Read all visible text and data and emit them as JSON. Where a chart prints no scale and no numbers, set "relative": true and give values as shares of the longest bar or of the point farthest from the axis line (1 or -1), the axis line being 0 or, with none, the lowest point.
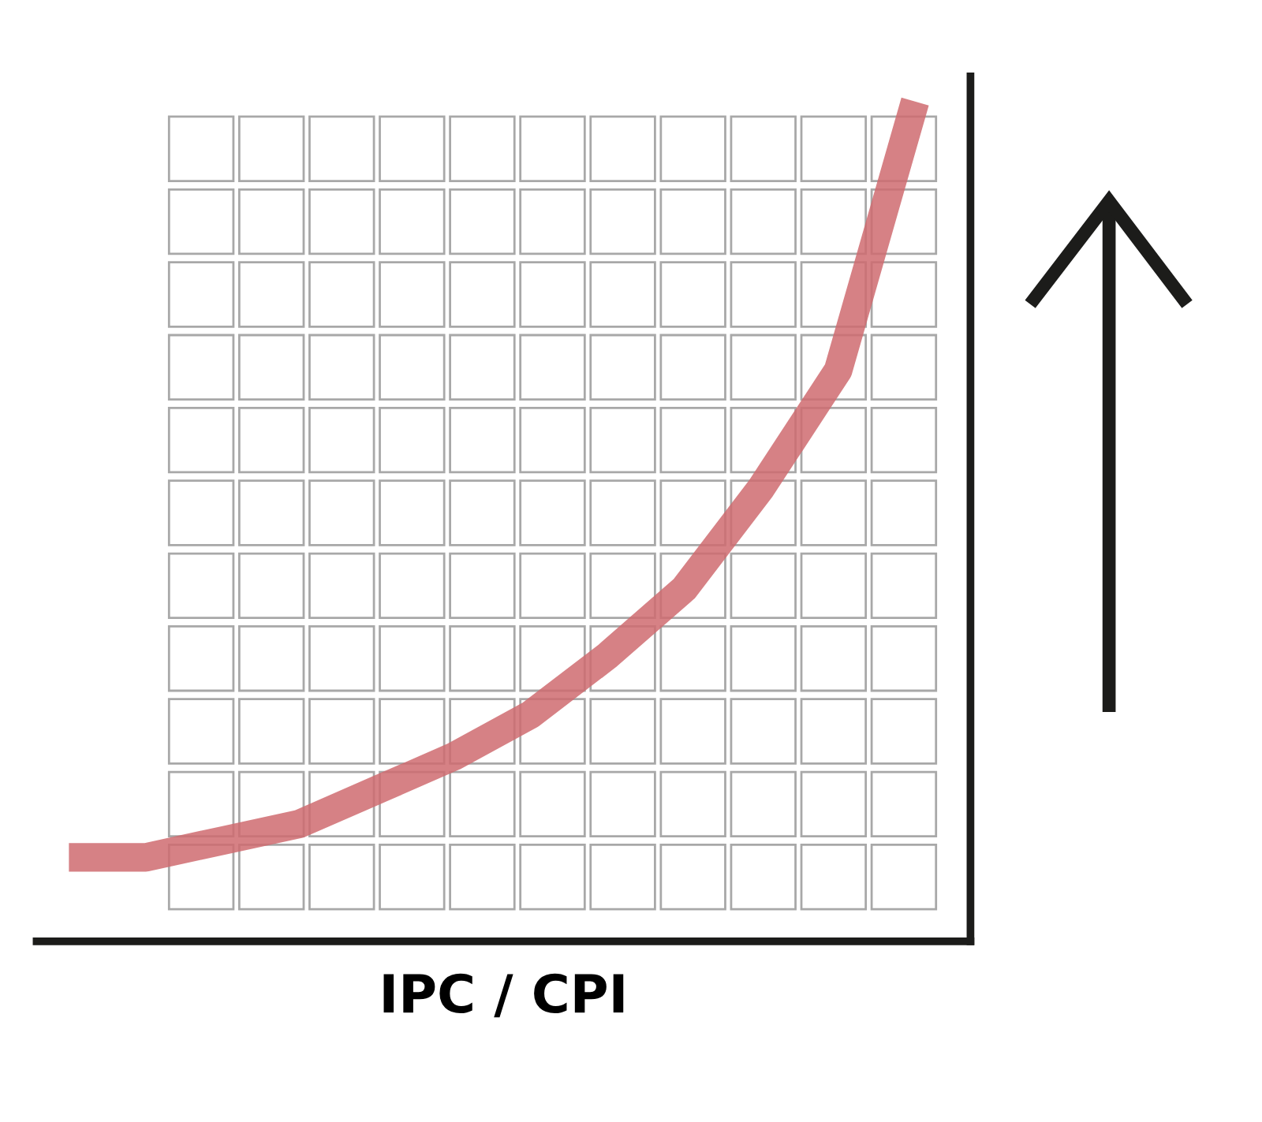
{
  "chart_data": {
    "type": "line",
    "relative": true,
    "xlabel": "IPC / CPI",
    "categories": [
      null,
      null,
      null,
      null,
      null,
      null,
      null,
      null,
      null,
      null,
      null,
      null
    ],
    "series": [
      {
        "color": "#cf6b70",
        "values": [
          0.1,
          0.1,
          0.12,
          0.14,
          0.18,
          0.22,
          0.27,
          0.34,
          0.42,
          0.54,
          0.68,
          1.0
        ]
      }
    ],
    "marker": "none",
    "line_style": "solid",
    "grid": false,
    "legend": false
  }
}
